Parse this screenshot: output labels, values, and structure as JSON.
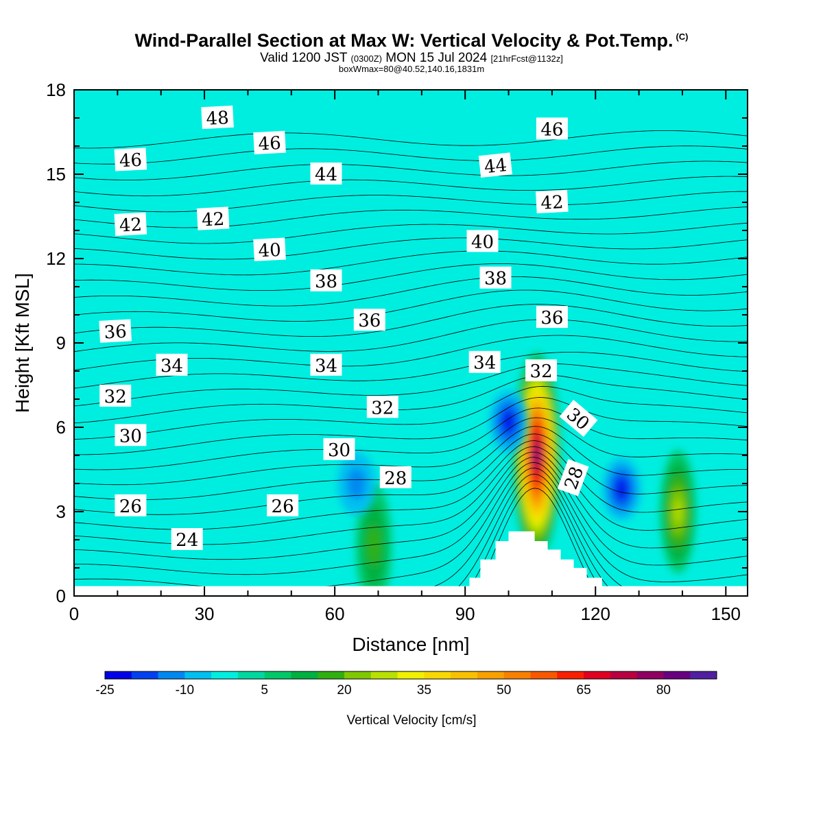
{
  "titles": {
    "main": "Wind-Parallel Section at Max W: Vertical Velocity & Pot.Temp.",
    "copyright": "(C)",
    "valid_prefix": "Valid 1200 JST",
    "valid_utc": "(0300Z)",
    "valid_date": "MON 15 Jul 2024",
    "forecast": "[21hrFcst@1132z]",
    "box": "boxWmax=80@40.52,140.16,1831m"
  },
  "colors": {
    "background_field": "#00eee0",
    "terrain": "#ffffff",
    "contour_line": "#000000"
  },
  "chart_data": {
    "type": "heatmap",
    "title": "Wind-Parallel Section at Max W: Vertical Velocity & Pot.Temp.",
    "xlabel": "Distance [nm]",
    "ylabel": "Height [Kft MSL]",
    "xlim": [
      0,
      155
    ],
    "ylim": [
      0,
      18
    ],
    "xticks": [
      0,
      30,
      60,
      90,
      120,
      150
    ],
    "yticks": [
      0,
      3,
      6,
      9,
      12,
      15,
      18
    ],
    "colorbar": {
      "label": "Vertical Velocity [cm/s]",
      "bounds": [
        -25,
        -20,
        -15,
        -10,
        -5,
        0,
        5,
        10,
        15,
        20,
        25,
        30,
        35,
        40,
        45,
        50,
        55,
        60,
        65,
        70,
        75,
        80,
        85,
        90
      ],
      "tick_labels": [
        "-25",
        "-10",
        "5",
        "20",
        "35",
        "50",
        "65",
        "80"
      ],
      "colors": [
        "#0000e8",
        "#0040f0",
        "#0088f0",
        "#00c0f0",
        "#00eee0",
        "#00d8a0",
        "#00c868",
        "#00b040",
        "#30b010",
        "#80c800",
        "#b8e000",
        "#f0f000",
        "#f8d800",
        "#f8c000",
        "#f8a000",
        "#f88000",
        "#f85800",
        "#f82000",
        "#e00020",
        "#b80040",
        "#900060",
        "#680080",
        "#5020a0"
      ]
    },
    "terrain_profile": [
      [
        0,
        0.35
      ],
      [
        91,
        0.35
      ],
      [
        91,
        0.65
      ],
      [
        93.5,
        0.65
      ],
      [
        93.5,
        1.3
      ],
      [
        97,
        1.3
      ],
      [
        97,
        1.95
      ],
      [
        100,
        1.95
      ],
      [
        100,
        2.3
      ],
      [
        106,
        2.3
      ],
      [
        106,
        1.95
      ],
      [
        109,
        1.95
      ],
      [
        109,
        1.65
      ],
      [
        112,
        1.65
      ],
      [
        112,
        1.3
      ],
      [
        115,
        1.3
      ],
      [
        115,
        1.0
      ],
      [
        118,
        1.0
      ],
      [
        118,
        0.65
      ],
      [
        121.5,
        0.65
      ],
      [
        121.5,
        0.35
      ],
      [
        155,
        0.35
      ]
    ],
    "w_features": [
      {
        "x": 106.5,
        "y": 5.0,
        "value": 80,
        "shape": "updraft core"
      },
      {
        "x": 139,
        "y": 3.0,
        "value": 25,
        "shape": "updraft"
      },
      {
        "x": 69,
        "y": 1.8,
        "value": 15,
        "shape": "updraft"
      },
      {
        "x": 100,
        "y": 6.2,
        "value": -20,
        "shape": "downdraft"
      },
      {
        "x": 126,
        "y": 3.8,
        "value": -20,
        "shape": "downdraft"
      },
      {
        "x": 65,
        "y": 4.0,
        "value": -10,
        "shape": "downdraft"
      }
    ],
    "contour_labels": [
      {
        "text": "48",
        "x": 33,
        "y": 17.0,
        "angle": -3
      },
      {
        "text": "46",
        "x": 45,
        "y": 16.1,
        "angle": -3
      },
      {
        "text": "46",
        "x": 13,
        "y": 15.5,
        "angle": -3
      },
      {
        "text": "46",
        "x": 110,
        "y": 16.6,
        "angle": 0
      },
      {
        "text": "44",
        "x": 58,
        "y": 15.0,
        "angle": 0
      },
      {
        "text": "44",
        "x": 97,
        "y": 15.3,
        "angle": -6
      },
      {
        "text": "42",
        "x": 13,
        "y": 13.2,
        "angle": -3
      },
      {
        "text": "42",
        "x": 32,
        "y": 13.4,
        "angle": -3
      },
      {
        "text": "42",
        "x": 110,
        "y": 14.0,
        "angle": -3
      },
      {
        "text": "40",
        "x": 45,
        "y": 12.3,
        "angle": -3
      },
      {
        "text": "40",
        "x": 94,
        "y": 12.6,
        "angle": 0
      },
      {
        "text": "38",
        "x": 58,
        "y": 11.2,
        "angle": 0
      },
      {
        "text": "38",
        "x": 97,
        "y": 11.3,
        "angle": 0
      },
      {
        "text": "36",
        "x": 9.5,
        "y": 9.4,
        "angle": -3
      },
      {
        "text": "36",
        "x": 68,
        "y": 9.8,
        "angle": 0
      },
      {
        "text": "36",
        "x": 110,
        "y": 9.9,
        "angle": 0
      },
      {
        "text": "34",
        "x": 22.5,
        "y": 8.2,
        "angle": 0
      },
      {
        "text": "34",
        "x": 58,
        "y": 8.2,
        "angle": 0
      },
      {
        "text": "34",
        "x": 94.5,
        "y": 8.3,
        "angle": 0
      },
      {
        "text": "32",
        "x": 9.5,
        "y": 7.1,
        "angle": 0
      },
      {
        "text": "32",
        "x": 107.5,
        "y": 8.0,
        "angle": 0
      },
      {
        "text": "32",
        "x": 71,
        "y": 6.7,
        "angle": 0
      },
      {
        "text": "30",
        "x": 13,
        "y": 5.7,
        "angle": 0
      },
      {
        "text": "30",
        "x": 61,
        "y": 5.2,
        "angle": 0
      },
      {
        "text": "30",
        "x": 116,
        "y": 6.3,
        "angle": 40
      },
      {
        "text": "28",
        "x": 74,
        "y": 4.2,
        "angle": 0
      },
      {
        "text": "28",
        "x": 115,
        "y": 4.2,
        "angle": -70
      },
      {
        "text": "26",
        "x": 13,
        "y": 3.2,
        "angle": 0
      },
      {
        "text": "26",
        "x": 48,
        "y": 3.2,
        "angle": 0
      },
      {
        "text": "24",
        "x": 26,
        "y": 2.0,
        "angle": 0
      }
    ]
  }
}
